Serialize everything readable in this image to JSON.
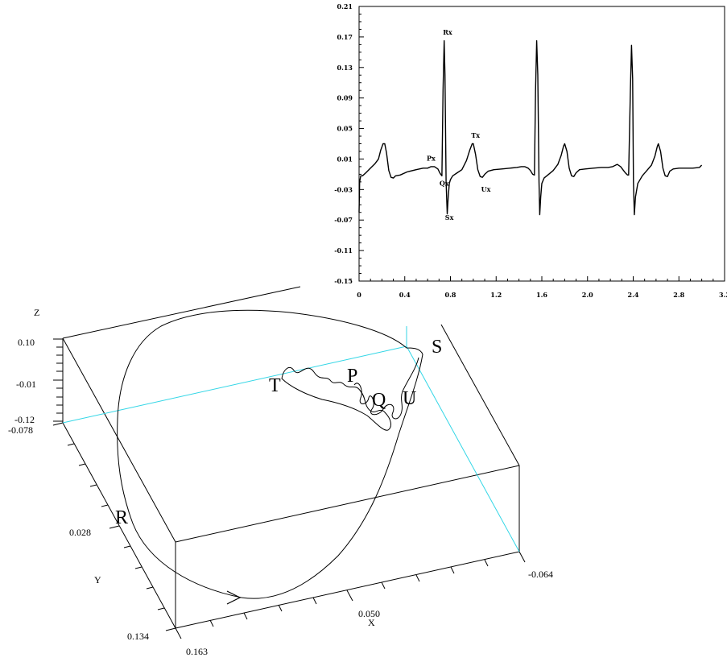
{
  "chart_data": [
    {
      "type": "line",
      "x_ticks": [
        "0",
        "0.4",
        "0.8",
        "1.2",
        "1.6",
        "2.0",
        "2.4",
        "2.8",
        "3.2"
      ],
      "y_ticks": [
        "0.21",
        "0.17",
        "0.13",
        "0.09",
        "0.05",
        "0.01",
        "-0.03",
        "-0.07",
        "-0.11",
        "-0.15"
      ],
      "xlim": [
        0,
        3.2
      ],
      "ylim": [
        -0.15,
        0.21
      ],
      "grid": false,
      "series": [
        {
          "x": [
            0,
            0.005,
            0.015,
            0.03,
            0.06,
            0.1,
            0.14,
            0.17,
            0.19,
            0.21,
            0.225,
            0.24,
            0.26,
            0.28,
            0.3,
            0.32,
            0.36,
            0.42,
            0.5,
            0.56,
            0.6,
            0.63,
            0.66,
            0.69,
            0.71,
            0.725,
            0.735,
            0.745,
            0.752,
            0.762,
            0.772,
            0.78,
            0.79,
            0.8,
            0.82,
            0.86,
            0.9,
            0.94,
            0.97,
            0.99,
            1.0,
            1.02,
            1.04,
            1.06,
            1.08,
            1.1,
            1.13,
            1.18,
            1.25,
            1.32,
            1.38,
            1.42,
            1.45,
            1.48,
            1.5,
            1.52,
            1.535,
            1.545,
            1.555,
            1.565,
            1.575,
            1.582,
            1.59,
            1.6,
            1.62,
            1.66,
            1.7,
            1.74,
            1.77,
            1.79,
            1.8,
            1.82,
            1.84,
            1.86,
            1.88,
            1.9,
            1.93,
            1.98,
            2.05,
            2.12,
            2.18,
            2.22,
            2.26,
            2.29,
            2.31,
            2.33,
            2.35,
            2.36,
            2.375,
            2.385,
            2.395,
            2.402,
            2.41,
            2.42,
            2.44,
            2.48,
            2.52,
            2.56,
            2.59,
            2.61,
            2.62,
            2.64,
            2.66,
            2.68,
            2.7,
            2.72,
            2.75,
            2.8,
            2.86,
            2.92,
            2.98,
            3.0
          ],
          "y": [
            -0.06,
            -0.02,
            -0.012,
            -0.012,
            -0.008,
            -0.002,
            0.004,
            0.01,
            0.022,
            0.03,
            0.03,
            0.018,
            -0.005,
            -0.014,
            -0.015,
            -0.012,
            -0.011,
            -0.007,
            -0.004,
            -0.002,
            -0.002,
            0.0,
            0.0,
            -0.003,
            -0.009,
            -0.012,
            0.1,
            0.165,
            0.12,
            -0.02,
            -0.062,
            -0.04,
            -0.022,
            -0.017,
            -0.012,
            -0.008,
            -0.004,
            0.008,
            0.022,
            0.03,
            0.03,
            0.016,
            -0.004,
            -0.013,
            -0.014,
            -0.01,
            -0.006,
            -0.004,
            -0.003,
            -0.002,
            -0.001,
            0.0,
            0.0,
            -0.002,
            -0.005,
            -0.01,
            -0.011,
            0.1,
            0.165,
            0.12,
            -0.02,
            -0.063,
            -0.04,
            -0.022,
            -0.015,
            -0.01,
            -0.005,
            0.003,
            0.015,
            0.027,
            0.03,
            0.02,
            -0.002,
            -0.012,
            -0.013,
            -0.008,
            -0.004,
            -0.003,
            -0.002,
            -0.001,
            -0.001,
            0.0,
            0.003,
            0.0,
            -0.004,
            -0.008,
            -0.011,
            -0.011,
            0.1,
            0.159,
            0.115,
            -0.02,
            -0.063,
            -0.04,
            -0.022,
            -0.012,
            -0.005,
            0.002,
            0.014,
            0.026,
            0.03,
            0.02,
            -0.002,
            -0.012,
            -0.013,
            -0.006,
            -0.003,
            -0.002,
            -0.002,
            -0.002,
            -0.001,
            0.002
          ]
        }
      ],
      "annotations": [
        {
          "text": "Rx",
          "x": 0.775,
          "y": 0.173
        },
        {
          "text": "Px",
          "x": 0.63,
          "y": 0.008
        },
        {
          "text": "Tx",
          "x": 1.02,
          "y": 0.038
        },
        {
          "text": "Qx",
          "x": 0.745,
          "y": -0.025
        },
        {
          "text": "Ux",
          "x": 1.11,
          "y": -0.033
        },
        {
          "text": "Sx",
          "x": 0.79,
          "y": -0.07
        }
      ]
    },
    {
      "type": "line",
      "projection": "3d",
      "axes": {
        "x": {
          "label": "X",
          "ticks": [
            "0.163",
            "0.050",
            "-0.064"
          ]
        },
        "y": {
          "label": "Y",
          "ticks": [
            "-0.078",
            "0.028",
            "0.134"
          ]
        },
        "z": {
          "label": "Z",
          "ticks": [
            "0.10",
            "-0.01",
            "-0.12"
          ]
        }
      },
      "annotations": [
        "T",
        "P",
        "Q",
        "U",
        "S",
        "R"
      ],
      "direction_marker": "arrow"
    }
  ]
}
